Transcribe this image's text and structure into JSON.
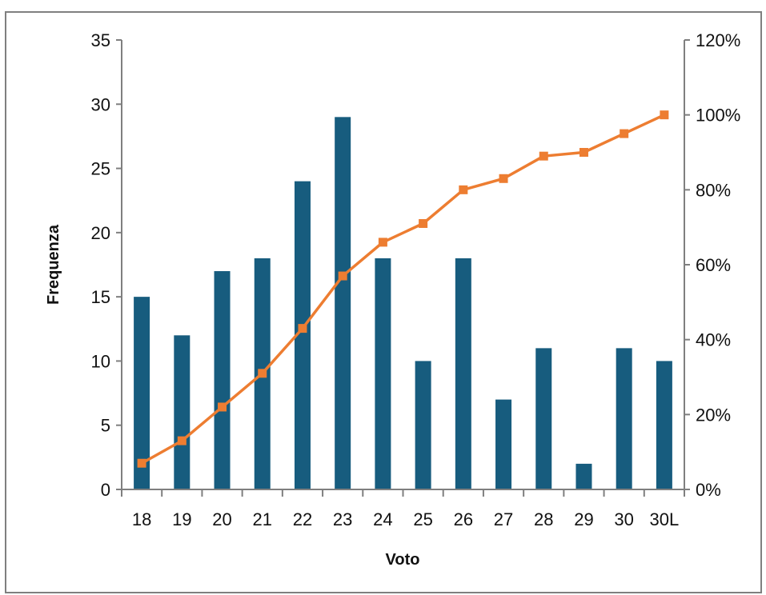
{
  "chart_data": {
    "type": "bar",
    "categories": [
      "18",
      "19",
      "20",
      "21",
      "22",
      "23",
      "24",
      "25",
      "26",
      "27",
      "28",
      "29",
      "30",
      "30L"
    ],
    "series": [
      {
        "type": "bar",
        "axis": "left",
        "color": "#175c7e",
        "values": [
          15,
          12,
          17,
          18,
          24,
          29,
          18,
          10,
          18,
          7,
          11,
          2,
          11,
          10
        ]
      },
      {
        "type": "line",
        "axis": "right",
        "color": "#ed7d31",
        "marker": "square",
        "values": [
          0.07,
          0.13,
          0.22,
          0.31,
          0.43,
          0.57,
          0.66,
          0.71,
          0.8,
          0.83,
          0.89,
          0.9,
          0.95,
          1.0
        ]
      }
    ],
    "xlabel": "Voto",
    "ylabel": "Frequenza",
    "ylim": [
      0,
      35
    ],
    "yticks": [
      "0",
      "5",
      "10",
      "15",
      "20",
      "25",
      "30",
      "35"
    ],
    "y2lim": [
      0,
      1.2
    ],
    "y2ticks": [
      "0%",
      "20%",
      "40%",
      "60%",
      "80%",
      "100%",
      "120%"
    ],
    "grid": false,
    "legend": "none"
  }
}
